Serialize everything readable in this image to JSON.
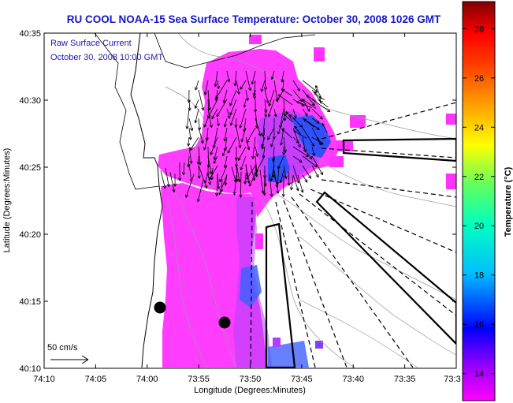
{
  "title": "RU COOL  NOAA-15  Sea Surface Temperature:  October 30, 2008 1026 GMT",
  "annotation": {
    "line1": "Raw Surface Current",
    "line2": "October 30, 2008 10:00 GMT"
  },
  "scale_label": "50 cm/s",
  "x_axis": {
    "label": "Longitude (Degrees:Minutes)",
    "ticks": [
      "74:10",
      "74:05",
      "74:00",
      "73:55",
      "73:50",
      "73:45",
      "73:40",
      "73:35",
      "73:3"
    ]
  },
  "y_axis": {
    "label": "Latitude (Degrees:Minutes)",
    "ticks": [
      "40:35",
      "40:30",
      "40:25",
      "40:20",
      "40:15",
      "40:10"
    ]
  },
  "colorbar": {
    "label": "Temperature (°C)",
    "ticks": [
      "28",
      "26",
      "24",
      "22",
      "20",
      "18",
      "16",
      "14"
    ],
    "min": 12.9,
    "max": 29.1,
    "colors": [
      "#ff00ff",
      "#a000ff",
      "#0000ff",
      "#00bfff",
      "#00ffc0",
      "#60ff60",
      "#ffff00",
      "#ffa000",
      "#ff4000",
      "#ff0000",
      "#c80000",
      "#7f0000"
    ]
  },
  "colors": {
    "title": "#1515c8",
    "annotation": "#1a1ab4",
    "sst_warm": "#ff33ff",
    "sst_mid": "#aa44ff",
    "sst_cool": "#3050ff"
  }
}
